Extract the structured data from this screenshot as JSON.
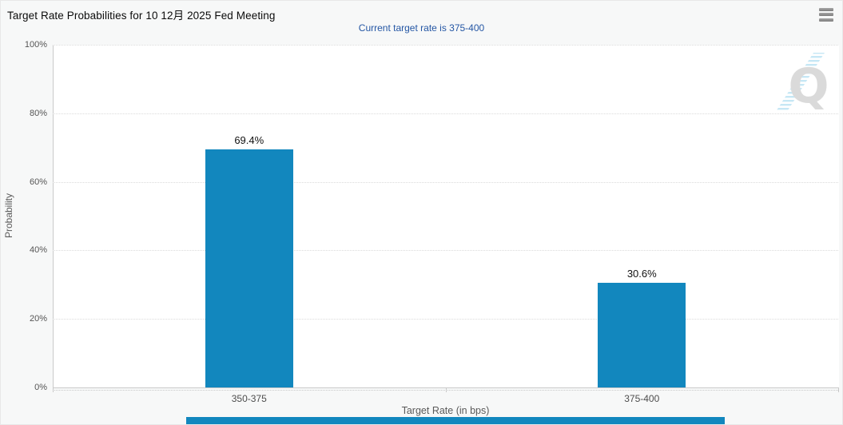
{
  "chart_data": {
    "type": "bar",
    "title": "Target Rate Probabilities for 10 12月 2025 Fed Meeting",
    "subtitle": "Current target rate is 375-400",
    "categories": [
      "350-375",
      "375-400"
    ],
    "values": [
      69.4,
      30.6
    ],
    "value_labels": [
      "69.4%",
      "30.6%"
    ],
    "xlabel": "Target Rate (in bps)",
    "ylabel": "Probability",
    "ylim": [
      0,
      100
    ],
    "yticks": [
      0,
      20,
      40,
      60,
      80,
      100
    ],
    "ytick_labels": [
      "0%",
      "20%",
      "40%",
      "60%",
      "80%",
      "100%"
    ],
    "grid": "dotted-horizontal",
    "legend": "none",
    "colors": {
      "bar": "#1287be",
      "subtitle_text": "#2456a4",
      "axis_line": "#c9c9c9",
      "grid_line": "#dbdbdb",
      "background": "#f7f8f8",
      "plot_background": "#ffffff"
    }
  },
  "menu": {
    "icon": "hamburger-menu"
  },
  "watermark": {
    "letter": "Q",
    "letter_color": "#d9d9d9",
    "stripe_color": "#c4e6f5"
  },
  "scrollbar": {
    "color": "#1287be"
  }
}
